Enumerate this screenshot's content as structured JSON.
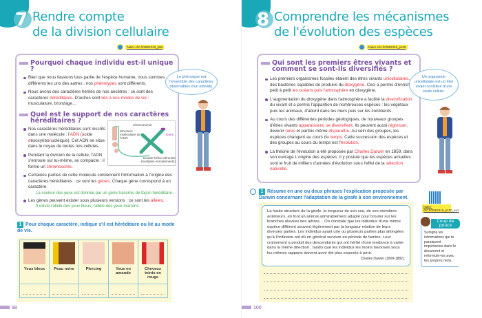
{
  "left_page": {
    "chapter_number": "7",
    "title_line1": "Rendre compte",
    "title_line2": "de la division cellulaire",
    "link": "hatier-clic.fr/2952319_p98",
    "section1": {
      "heading": "Pourquoi chaque individu est-il unique ?",
      "bullets": [
        [
          [
            "Bien que nous fassions tous partie de l'espèce humaine, nous sommes différents les uns des autres : nos ",
            ""
          ],
          [
            "phénotypes",
            "r"
          ],
          [
            " sont différents.",
            ""
          ]
        ],
        [
          [
            "Nous avons des caractères hérités de nos ancêtres : ce sont des caractères ",
            ""
          ],
          [
            "héréditaires",
            "r"
          ],
          [
            ". D'autres sont ",
            ""
          ],
          [
            "liés à nos modes de vie",
            "r"
          ],
          [
            " : musculature, bronzage…",
            ""
          ]
        ]
      ]
    },
    "section2": {
      "heading": "Quel est le support de nos caractères héréditaires ?",
      "bullets": [
        [
          [
            "Nos caractères héréditaires sont inscrits dans une molécule : l'",
            ""
          ],
          [
            "ADN",
            "r"
          ],
          [
            " (",
            ""
          ],
          [
            "a",
            "r"
          ],
          [
            "cide ",
            ""
          ],
          [
            "d",
            "r"
          ],
          [
            "ésoxyribo",
            ""
          ],
          [
            "n",
            "r"
          ],
          [
            "ucléique). Cet ADN se situe dans le noyau de toutes nos cellules.",
            ""
          ]
        ],
        [
          [
            "Pendant la division de la cellule, l'ADN s'enroule sur lui-même, se compacte : il forme un ",
            ""
          ],
          [
            "chromosome",
            "r"
          ],
          [
            ".",
            ""
          ]
        ],
        [
          [
            "Certaines parties de cette molécule contiennent l'information à l'origine des caractères héréditaires : ce sont les ",
            ""
          ],
          [
            "gènes",
            "r"
          ],
          [
            ". Chaque gène correspond à un caractère.",
            ""
          ]
        ],
        [
          [
            "Les gènes peuvent exister sous plusieurs versions : ce sont les ",
            ""
          ],
          [
            "allèles",
            "r"
          ],
          [
            ".",
            ""
          ]
        ]
      ],
      "example1": "La couleur des yeux est donnée par un gène transmis de façon héréditaire.",
      "example2": "Il existe l'allèle des yeux bleus, l'allèle des yeux marrons.",
      "diagram": {
        "chromosome": "Chromosome",
        "structure": "Structure moléculaire de l'ADN",
        "gene": "Gène",
        "helix": "Double hélice déroulée (multiples enroulements)"
      }
    },
    "bubble": "Le phénotype est l'ensemble des caractères observables d'un individu.",
    "question": {
      "number": "1",
      "text": "Pour chaque caractère, indique s'il est héréditaire ou lié au mode de vie."
    },
    "traits": [
      "Yeux bleus",
      "Peau noire",
      "Piercing",
      "Yeux en amande",
      "Cheveux teints en rouge"
    ],
    "page_number": "98"
  },
  "right_page": {
    "chapter_number": "8",
    "title_line1": "Comprendre les mécanismes",
    "title_line2": "de l'évolution des espèces",
    "link": "hatier-clic.fr/2952319_p100",
    "section": {
      "heading": "Qui sont les premiers êtres vivants et comment se sont-ils diversifiés ?",
      "bullets": [
        [
          [
            "Les premiers organismes fossiles étaient des êtres vivants ",
            ""
          ],
          [
            "unicellulaires",
            "r"
          ],
          [
            ", des bactéries capables de produire du ",
            ""
          ],
          [
            "dioxygène",
            "r"
          ],
          [
            ". Ceci a permis d'enrichir petit à petit ",
            ""
          ],
          [
            "les océans puis l'atmosphère",
            "r"
          ],
          [
            " en dioxygène.",
            ""
          ]
        ],
        [
          [
            "L'augmentation du dioxygène dans l'atmosphère a facilité la ",
            ""
          ],
          [
            "diversification",
            "r"
          ],
          [
            " du vivant et a permis l'apparition de nombreuses espèces : les végétaux puis les animaux, d'abord dans les mers puis sur les continents.",
            ""
          ]
        ],
        [
          [
            "Au cours des différentes périodes géologiques, de nouveaux groupes d'êtres vivants ",
            ""
          ],
          [
            "apparaissent",
            "r"
          ],
          [
            ", ",
            ""
          ],
          [
            "se diversifient",
            "r"
          ],
          [
            ". Ils peuvent aussi ",
            ""
          ],
          [
            "régresser",
            "r"
          ],
          [
            ", devenir ",
            ""
          ],
          [
            "rares",
            "r"
          ],
          [
            " et parfois même ",
            ""
          ],
          [
            "disparaître",
            "r"
          ],
          [
            ". Au sein des groupes, les espèces changent au cours du ",
            ""
          ],
          [
            "temps",
            "r"
          ],
          [
            ". Cette succession des espèces et des groupes au cours du temps est l'",
            ""
          ],
          [
            "évolution",
            "r"
          ],
          [
            ".",
            ""
          ]
        ],
        [
          [
            "La théorie de l'évolution a été proposée par ",
            ""
          ],
          [
            "Charles Darwin",
            "r"
          ],
          [
            " en 1859, dans son ouvrage ",
            ""
          ],
          [
            "L'origine des espèces",
            "i"
          ],
          [
            ". Il y postule que les espèces actuelles sont le fruit de milliers d'années d'évolution sous l'effet de la ",
            ""
          ],
          [
            "sélection naturelle",
            "r"
          ],
          [
            ".",
            ""
          ]
        ]
      ]
    },
    "bubble": "Un organisme unicellulaire est un être vivant constitué d'une seule cellule.",
    "question": {
      "number": "1",
      "text": "Résume en une ou deux phrases l'explication proposée par Darwin concernant l'adaptation de la girafe à son environnement."
    },
    "quote": "La haute structure de la girafe, la longueur de son cou, de ses membres antérieurs, en font un animal admirablement adapté pour brouter sur les branches élevées des arbres… On constate que les individus d'une même espèce diffèrent souvent légèrement par la longueur relative de leurs diverses parties. Les individus ayant une ou plusieurs parties plus allongées qu'à l'ordinaire ont dû en général survivre en période de famine. Leur croisement a produit des descendants qui ont hérité d'une tendance à varier dans la même direction ; tandis que les individus les moins favorisés sous les mêmes rapports doivent avoir été plus exposés à périr.",
    "quote_author": "Charles Darwin (1809-1882).",
    "qr_link": "hatier-clic.fr/2952319_p100_ex1",
    "coup_de_pouce": {
      "title": "Coup de pouce",
      "text": "Surligne les informations qui te paraissent importantes dans le document et reformule-les avec tes propres mots."
    },
    "page_number": "100"
  },
  "colors": {
    "title": "#1aa8b8",
    "heading": "#7b4fa0",
    "highlight": "#e8303a",
    "example": "#3aa64a",
    "question": "#2a7fc4",
    "link_highlight": "#ffec3d"
  }
}
